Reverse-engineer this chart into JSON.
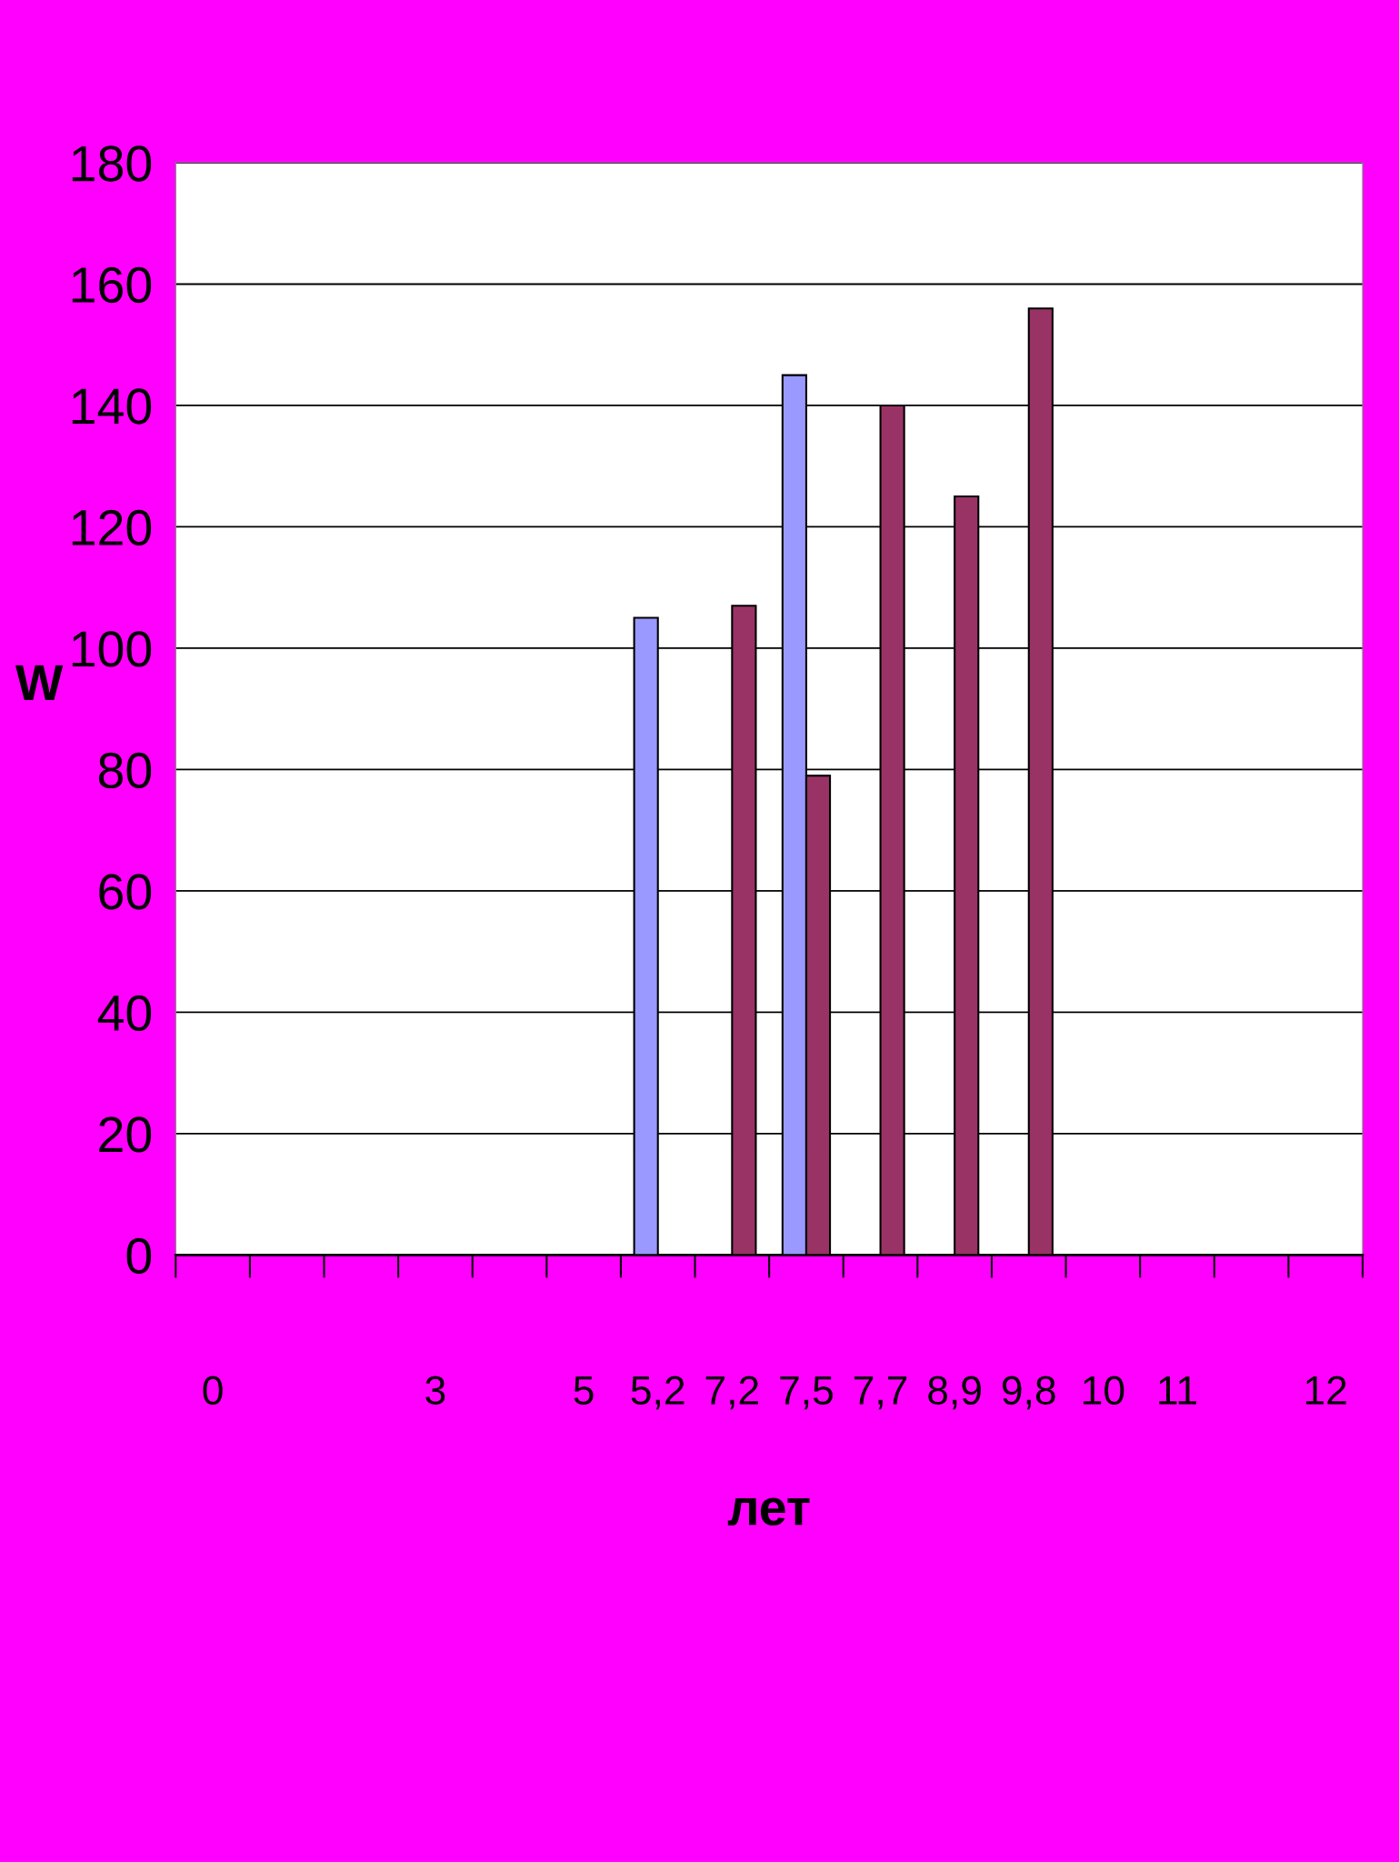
{
  "chart_data": {
    "type": "bar",
    "xlabel": "лет",
    "ylabel": "W",
    "categories": [
      "0",
      null,
      null,
      "3",
      null,
      "5",
      "5,2",
      "7,2",
      "7,5",
      "7,7",
      "8,9",
      "9,8",
      "10",
      "11",
      null,
      "12"
    ],
    "series": [
      {
        "color": "#9999ff",
        "values": [
          null,
          null,
          null,
          null,
          null,
          null,
          105,
          null,
          145,
          null,
          null,
          null,
          null,
          null,
          null,
          null
        ]
      },
      {
        "color": "#993366",
        "values": [
          null,
          null,
          null,
          null,
          null,
          null,
          null,
          107,
          79,
          140,
          125,
          156,
          null,
          null,
          null,
          null
        ]
      }
    ],
    "ylim": [
      0,
      180
    ],
    "yticks": [
      0,
      20,
      40,
      60,
      80,
      100,
      120,
      140,
      160,
      180
    ],
    "grid": "y",
    "legend": false
  }
}
